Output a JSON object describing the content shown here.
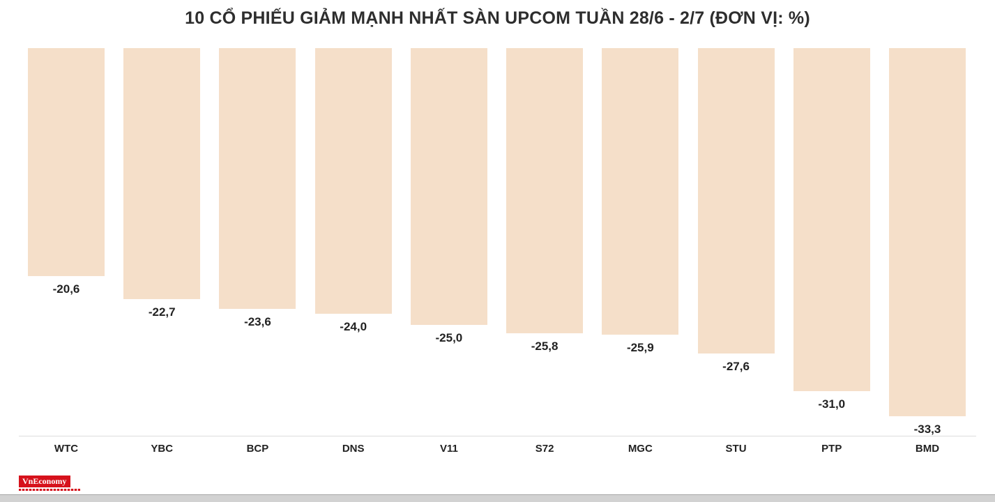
{
  "chart_data": {
    "type": "bar",
    "title": "10 CỔ PHIẾU GIẢM MẠNH NHẤT SÀN UPCOM TUẦN 28/6 - 2/7 (ĐƠN VỊ: %)",
    "categories": [
      "WTC",
      "YBC",
      "BCP",
      "DNS",
      "V11",
      "S72",
      "MGC",
      "STU",
      "PTP",
      "BMD"
    ],
    "values": [
      -20.6,
      -22.7,
      -23.6,
      -24.0,
      -25.0,
      -25.8,
      -25.9,
      -27.6,
      -31.0,
      -33.3
    ],
    "value_labels": [
      "-20,6",
      "-22,7",
      "-23,6",
      "-24,0",
      "-25,0",
      "-25,8",
      "-25,9",
      "-27,6",
      "-31,0",
      "-33,3"
    ],
    "unit": "%",
    "xlabel": "",
    "ylabel": "",
    "ylim": [
      -35,
      0
    ],
    "grid": false,
    "legend": "none",
    "orientation": "vertical-from-top",
    "bar_color": "#f5dfc9"
  },
  "logo": {
    "text": "VnEconomy",
    "color": "#d6121c"
  }
}
